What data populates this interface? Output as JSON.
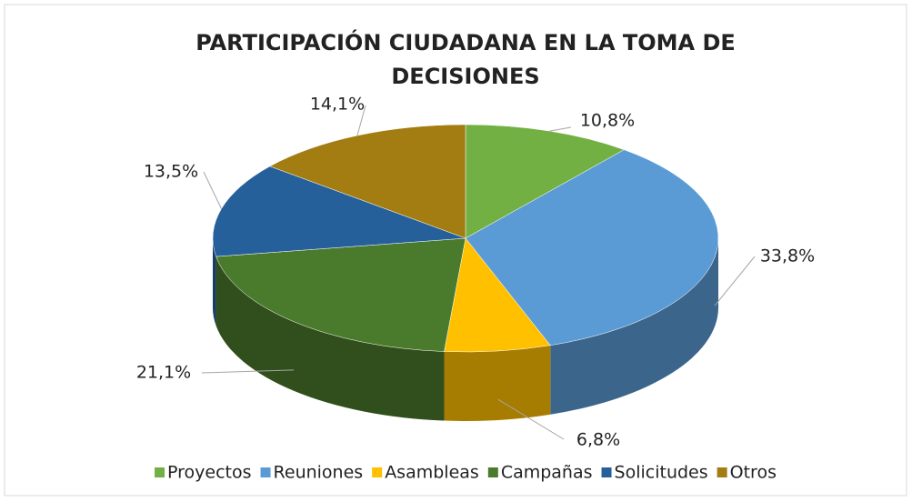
{
  "chart_data": {
    "type": "pie3d",
    "title": "PARTICIPACIÓN CIUDADANA EN LA TOMA DE DECISIONES",
    "categories": [
      "Proyectos",
      "Reuniones",
      "Asambleas",
      "Campañas",
      "Solicitudes",
      "Otros"
    ],
    "values": [
      10.8,
      33.8,
      6.8,
      21.1,
      13.5,
      14.1
    ],
    "value_labels": [
      "10,8%",
      "33,8%",
      "6,8%",
      "21,1%",
      "13,5%",
      "14,1%"
    ],
    "colors": [
      "#72b043",
      "#5b9bd5",
      "#ffc000",
      "#4a7a2c",
      "#26609a",
      "#a37c12"
    ],
    "legend": "bottom"
  }
}
